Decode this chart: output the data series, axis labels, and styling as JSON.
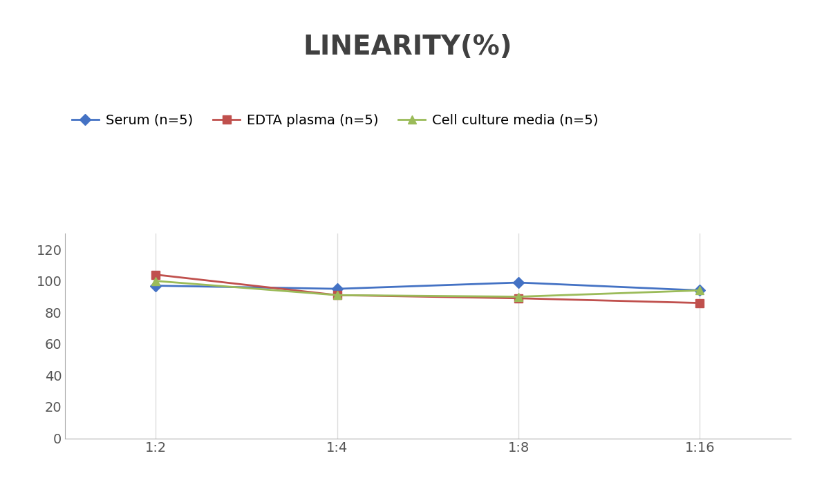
{
  "title": "LINEARITY(%)",
  "title_fontsize": 28,
  "title_fontweight": "bold",
  "title_color": "#404040",
  "x_labels": [
    "1:2",
    "1:4",
    "1:8",
    "1:16"
  ],
  "x_positions": [
    0,
    1,
    2,
    3
  ],
  "series": [
    {
      "label": "Serum (n=5)",
      "values": [
        97,
        95,
        99,
        94
      ],
      "color": "#4472C4",
      "marker": "D",
      "markersize": 8,
      "linewidth": 2
    },
    {
      "label": "EDTA plasma (n=5)",
      "values": [
        104,
        91,
        89,
        86
      ],
      "color": "#C0504D",
      "marker": "s",
      "markersize": 8,
      "linewidth": 2
    },
    {
      "label": "Cell culture media (n=5)",
      "values": [
        100,
        91,
        90,
        94
      ],
      "color": "#9BBB59",
      "marker": "^",
      "markersize": 9,
      "linewidth": 2
    }
  ],
  "ylim": [
    0,
    130
  ],
  "yticks": [
    0,
    20,
    40,
    60,
    80,
    100,
    120
  ],
  "grid_color": "#DDDDDD",
  "background_color": "#FFFFFF",
  "legend_fontsize": 14,
  "axis_fontsize": 14,
  "tick_color": "#555555"
}
